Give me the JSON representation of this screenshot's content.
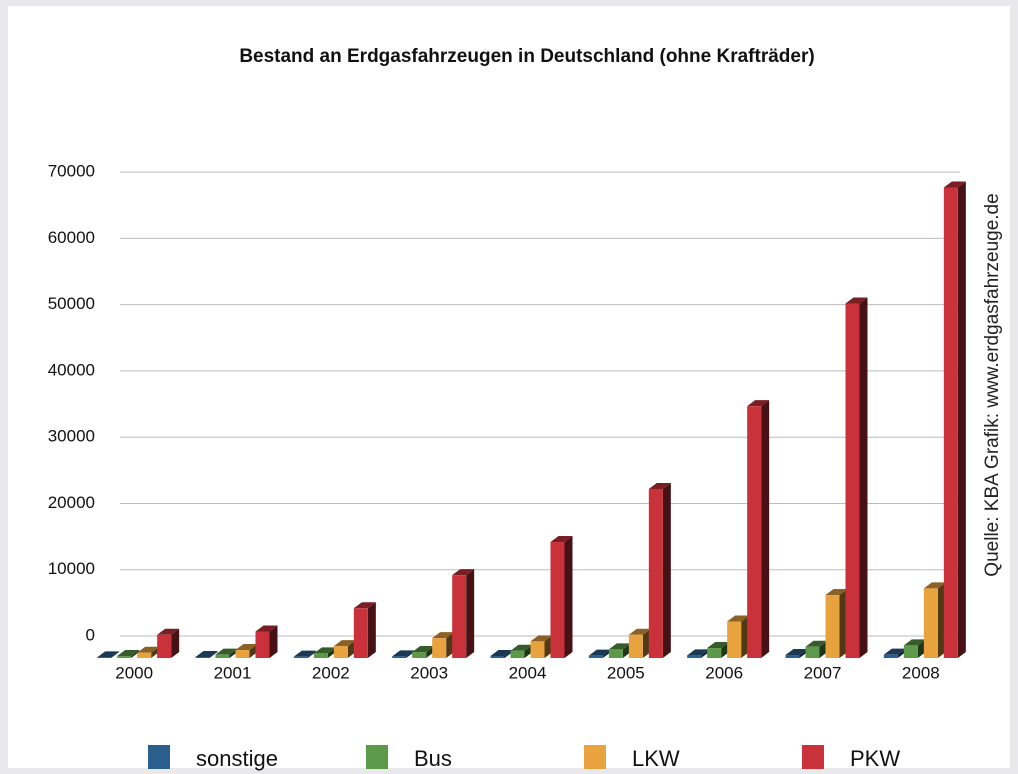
{
  "chart_data": {
    "type": "bar",
    "title": "Bestand an Erdgasfahrzeugen in Deutschland (ohne Krafträder)",
    "source": "Quelle: KBA   Grafik: www.erdgasfahrzeuge.de",
    "categories": [
      "2000",
      "2001",
      "2002",
      "2003",
      "2004",
      "2005",
      "2006",
      "2007",
      "2008"
    ],
    "series": [
      {
        "name": "sonstige",
        "color": "#2b5f8e",
        "values": [
          100,
          150,
          200,
          250,
          300,
          350,
          400,
          450,
          500
        ]
      },
      {
        "name": "Bus",
        "color": "#5c9a4a",
        "values": [
          300,
          500,
          700,
          900,
          1100,
          1300,
          1500,
          1700,
          1900
        ]
      },
      {
        "name": "LKW",
        "color": "#e8a33f",
        "values": [
          800,
          1200,
          1800,
          3000,
          2500,
          3500,
          5500,
          9500,
          10500
        ]
      },
      {
        "name": "PKW",
        "color": "#c9323b",
        "values": [
          3500,
          4000,
          7500,
          12500,
          17500,
          25500,
          38000,
          53500,
          71000
        ]
      }
    ],
    "ylim": [
      0,
      75000
    ],
    "yticks": [
      0,
      10000,
      20000,
      30000,
      40000,
      50000,
      60000,
      70000
    ],
    "grid": true,
    "legend": "bottom"
  }
}
